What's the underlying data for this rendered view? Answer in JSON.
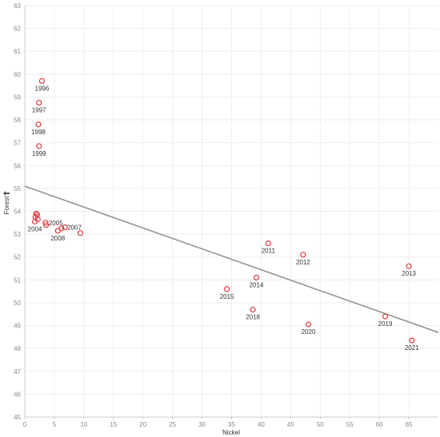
{
  "chart_data": {
    "type": "scatter",
    "xlabel": "Nickel",
    "ylabel": "Forest",
    "xlim": [
      0,
      70
    ],
    "ylim": [
      45,
      63
    ],
    "x_ticks": [
      "0",
      "5",
      "10",
      "15",
      "20",
      "25",
      "30",
      "35",
      "40",
      "45",
      "50",
      "55",
      "60",
      "65"
    ],
    "y_ticks": [
      "45",
      "46",
      "47",
      "48",
      "49",
      "50",
      "51",
      "52",
      "53",
      "54",
      "55",
      "56",
      "57",
      "58",
      "59",
      "60",
      "61",
      "62",
      "63"
    ],
    "grid": true,
    "colors": {
      "marker": "#e0393e",
      "trend": "#8c8c8c",
      "grid": "#eeeeee"
    },
    "points": [
      {
        "x": 2.9,
        "y": 59.7,
        "label": "1996"
      },
      {
        "x": 2.4,
        "y": 58.75,
        "label": "1997"
      },
      {
        "x": 2.3,
        "y": 57.8,
        "label": "1998"
      },
      {
        "x": 2.4,
        "y": 56.85,
        "label": "1999"
      },
      {
        "x": 1.9,
        "y": 53.9,
        "label": ""
      },
      {
        "x": 2.1,
        "y": 53.85,
        "label": ""
      },
      {
        "x": 1.8,
        "y": 53.75,
        "label": ""
      },
      {
        "x": 2.2,
        "y": 53.65,
        "label": ""
      },
      {
        "x": 1.7,
        "y": 53.55,
        "label": "2004"
      },
      {
        "x": 3.5,
        "y": 53.5,
        "label": "2005"
      },
      {
        "x": 3.6,
        "y": 53.4,
        "label": ""
      },
      {
        "x": 6.8,
        "y": 53.3,
        "label": "2007"
      },
      {
        "x": 6.2,
        "y": 53.25,
        "label": ""
      },
      {
        "x": 5.6,
        "y": 53.15,
        "label": "2008"
      },
      {
        "x": 9.4,
        "y": 53.05,
        "label": ""
      },
      {
        "x": 41.2,
        "y": 52.6,
        "label": "2011"
      },
      {
        "x": 47.1,
        "y": 52.1,
        "label": "2012"
      },
      {
        "x": 65.0,
        "y": 51.6,
        "label": "2013"
      },
      {
        "x": 39.2,
        "y": 51.1,
        "label": "2014"
      },
      {
        "x": 34.2,
        "y": 50.6,
        "label": "2015"
      },
      {
        "x": 38.6,
        "y": 49.7,
        "label": "2018"
      },
      {
        "x": 61.0,
        "y": 49.4,
        "label": "2019"
      },
      {
        "x": 48.0,
        "y": 49.05,
        "label": "2020"
      },
      {
        "x": 65.5,
        "y": 48.35,
        "label": "2021"
      }
    ],
    "trendline": {
      "x": [
        0,
        70
      ],
      "y": [
        55.1,
        48.7
      ]
    }
  }
}
